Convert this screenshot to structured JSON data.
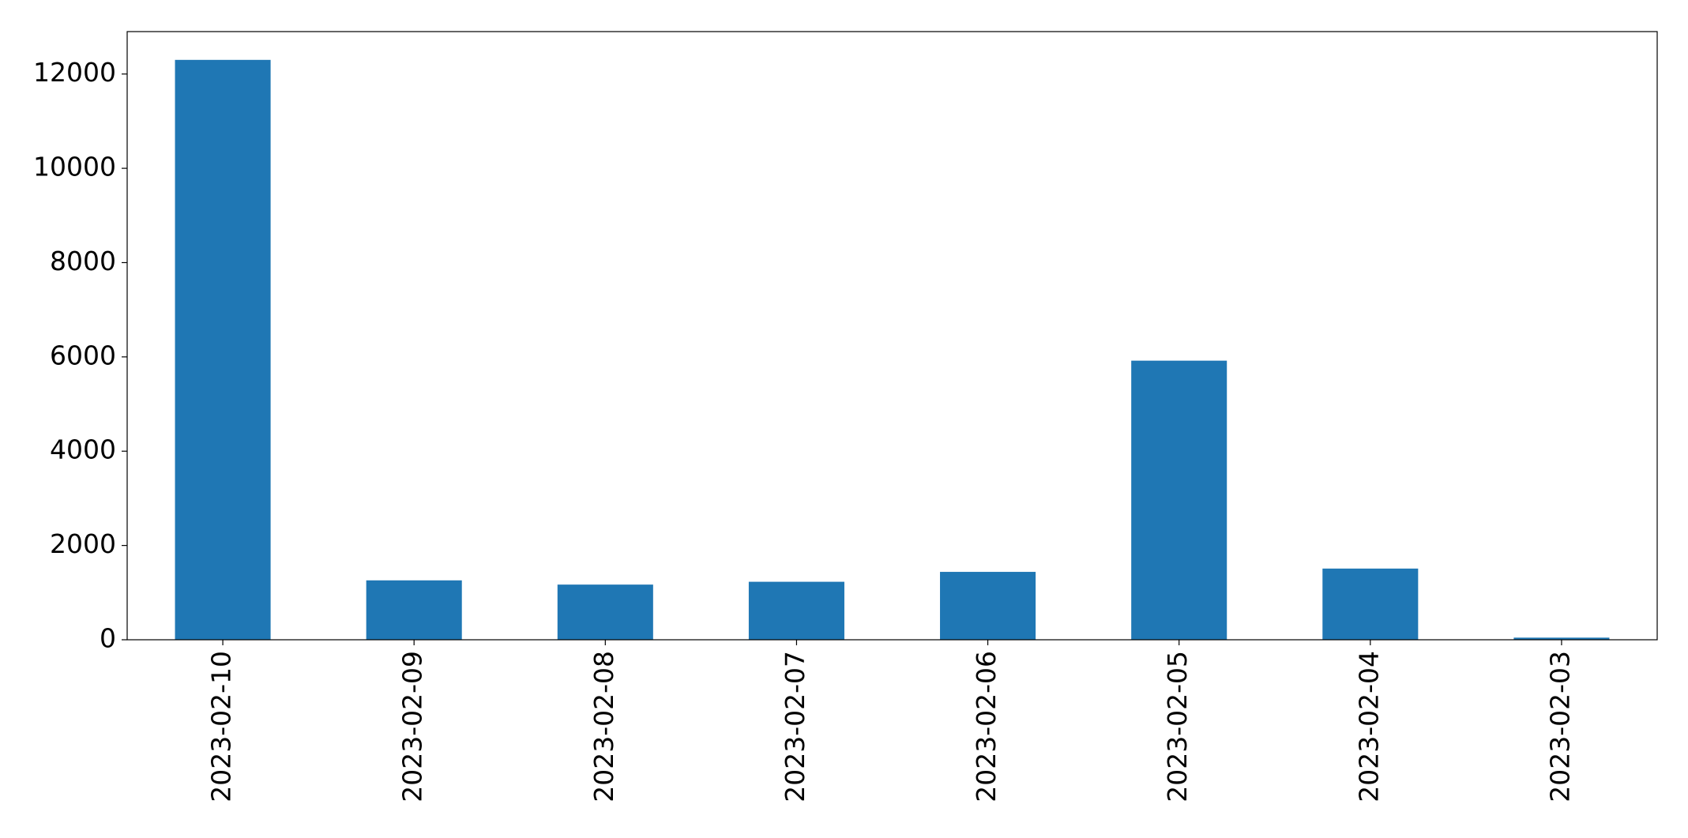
{
  "chart_data": {
    "type": "bar",
    "categories": [
      "2023-02-10",
      "2023-02-09",
      "2023-02-08",
      "2023-02-07",
      "2023-02-06",
      "2023-02-05",
      "2023-02-04",
      "2023-02-03"
    ],
    "values": [
      12300,
      1260,
      1170,
      1230,
      1440,
      5920,
      1510,
      45
    ],
    "color": "#1f77b4",
    "ylim": [
      0,
      12900
    ],
    "yticks": [
      0,
      2000,
      4000,
      6000,
      8000,
      10000,
      12000
    ],
    "grid": false
  }
}
